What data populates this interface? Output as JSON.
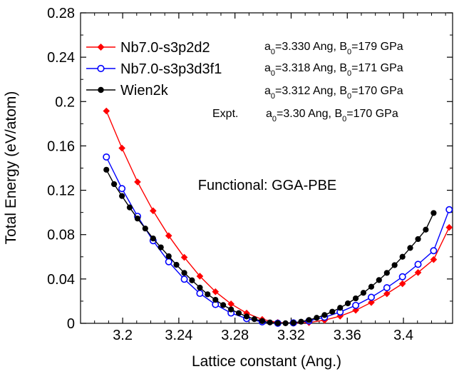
{
  "chart_data": {
    "type": "line",
    "xlabel": "Lattice constant (Ang.)",
    "ylabel": "Total Energy (eV/atom)",
    "xlim": [
      3.17,
      3.435
    ],
    "ylim": [
      0,
      0.28
    ],
    "xticks": [
      3.2,
      3.24,
      3.28,
      3.32,
      3.36,
      3.4
    ],
    "xtick_labels": [
      "3.2",
      "3.24",
      "3.28",
      "3.32",
      "3.36",
      "3.4"
    ],
    "yticks": [
      0,
      0.04,
      0.08,
      0.12,
      0.16,
      0.2,
      0.24,
      0.28
    ],
    "ytick_labels": [
      "0",
      "0.04",
      "0.08",
      "0.12",
      "0.16",
      "0.2",
      "0.24",
      "0.28"
    ],
    "annotation": "Functional: GGA-PBE",
    "legend_position": "top-left",
    "series": [
      {
        "name": "Nb7.0-s3p2d2",
        "color": "#ff0000",
        "marker": "filled-diamond",
        "x": [
          3.1884,
          3.1995,
          3.2106,
          3.2217,
          3.2328,
          3.2439,
          3.255,
          3.2661,
          3.2772,
          3.2883,
          3.2994,
          3.3105,
          3.3216,
          3.3327,
          3.3438,
          3.3549,
          3.366,
          3.3771,
          3.3882,
          3.3993,
          3.4104,
          3.4215,
          3.4326
        ],
        "y": [
          0.1915,
          0.158,
          0.1275,
          0.1015,
          0.079,
          0.0595,
          0.0425,
          0.0285,
          0.0175,
          0.0092,
          0.0035,
          0.0008,
          0.0002,
          0.0007,
          0.0028,
          0.0065,
          0.0118,
          0.0188,
          0.0267,
          0.0357,
          0.0458,
          0.0575,
          0.0865
        ]
      },
      {
        "name": "Nb7.0-s3p3d3f1",
        "color": "#0000ff",
        "marker": "open-circle",
        "x": [
          3.1884,
          3.1995,
          3.2106,
          3.2217,
          3.2328,
          3.2439,
          3.255,
          3.2661,
          3.2772,
          3.2883,
          3.2994,
          3.3105,
          3.3216,
          3.3327,
          3.3438,
          3.3549,
          3.366,
          3.3771,
          3.3882,
          3.3993,
          3.4104,
          3.4215,
          3.4326
        ],
        "y": [
          0.15,
          0.1215,
          0.0965,
          0.0745,
          0.0555,
          0.0398,
          0.027,
          0.017,
          0.0093,
          0.0043,
          0.0013,
          0.0001,
          0.0004,
          0.0022,
          0.0055,
          0.0102,
          0.0162,
          0.0235,
          0.0321,
          0.042,
          0.0532,
          0.0655,
          0.1025
        ]
      },
      {
        "name": "Wien2k",
        "color": "#000000",
        "marker": "filled-circle",
        "x": [
          3.1884,
          3.1939,
          3.1995,
          3.205,
          3.2106,
          3.2161,
          3.2217,
          3.2272,
          3.2328,
          3.2383,
          3.2439,
          3.2494,
          3.255,
          3.2605,
          3.2661,
          3.2716,
          3.2772,
          3.2827,
          3.2883,
          3.2938,
          3.2994,
          3.3049,
          3.3105,
          3.316,
          3.3216,
          3.3271,
          3.3327,
          3.3382,
          3.3438,
          3.3493,
          3.3549,
          3.3604,
          3.366,
          3.3715,
          3.3771,
          3.3826,
          3.3882,
          3.3937,
          3.3993,
          3.4048,
          3.4104,
          3.4159,
          3.4215
        ],
        "y": [
          0.1385,
          0.1255,
          0.1148,
          0.1045,
          0.0945,
          0.0855,
          0.0765,
          0.0685,
          0.0605,
          0.0528,
          0.0455,
          0.0388,
          0.0322,
          0.0262,
          0.0212,
          0.0165,
          0.0125,
          0.0092,
          0.0062,
          0.0038,
          0.002,
          0.0008,
          0.0002,
          0.0001,
          0.0005,
          0.0015,
          0.003,
          0.005,
          0.0075,
          0.0105,
          0.014,
          0.018,
          0.0225,
          0.0275,
          0.033,
          0.039,
          0.0455,
          0.0525,
          0.06,
          0.068,
          0.076,
          0.0845,
          0.0995
        ]
      }
    ]
  },
  "legend": {
    "items": [
      {
        "label": "Nb7.0-s3p2d2",
        "params": "a0=3.330 Ang, B0=179 GPa",
        "a0": "3.330",
        "b0": "179"
      },
      {
        "label": "Nb7.0-s3p3d3f1",
        "params": "a0=3.318 Ang, B0=171 GPa",
        "a0": "3.318",
        "b0": "171"
      },
      {
        "label": "Wien2k",
        "params": "a0=3.312 Ang, B0=170 GPa",
        "a0": "3.312",
        "b0": "170"
      }
    ],
    "expt": {
      "label": "Expt.",
      "a0": "3.30",
      "b0": "170"
    }
  }
}
